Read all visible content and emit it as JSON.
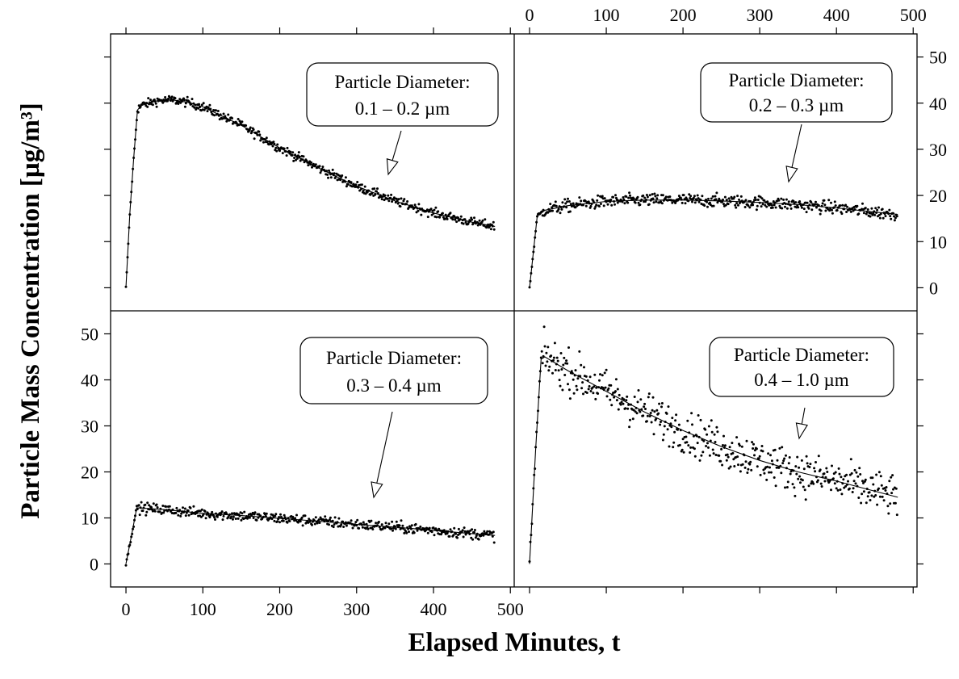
{
  "chart_data": {
    "type": "scatter",
    "xlabel": "Elapsed Minutes, t",
    "ylabel": "Particle Mass Concentration  [µg/m³]",
    "xlim": [
      -20,
      505
    ],
    "ylim": [
      -5,
      55
    ],
    "x_ticks": [
      0,
      100,
      200,
      300,
      400,
      500
    ],
    "y_ticks": [
      0,
      10,
      20,
      30,
      40,
      50
    ],
    "grid": false,
    "legend": "none",
    "panels": [
      {
        "annotation_line1": "Particle Diameter:",
        "annotation_line2": "0.1 – 0.2 µm",
        "fit": {
          "x": [
            0,
            5,
            10,
            15,
            20,
            40,
            60,
            80,
            100,
            150,
            200,
            250,
            300,
            350,
            400,
            450,
            480
          ],
          "y": [
            0,
            16,
            28,
            38.5,
            39.5,
            40.5,
            40.7,
            40.2,
            39.2,
            35.2,
            30.3,
            26,
            22,
            18.8,
            16.2,
            14.2,
            13.3
          ]
        },
        "points": {
          "start": 0,
          "count": 480,
          "noise": 0.5
        }
      },
      {
        "annotation_line1": "Particle Diameter:",
        "annotation_line2": "0.2 – 0.3 µm",
        "fit": {
          "x": [
            0,
            10,
            20,
            50,
            100,
            150,
            200,
            250,
            300,
            350,
            400,
            450,
            480
          ],
          "y": [
            0,
            15.5,
            16.8,
            17.8,
            18.7,
            19,
            19,
            18.8,
            18.5,
            18,
            17.3,
            16.4,
            15.9
          ]
        },
        "points": {
          "start": 0,
          "count": 480,
          "noise": 0.7
        }
      },
      {
        "annotation_line1": "Particle Diameter:",
        "annotation_line2": "0.3 – 0.4 µm",
        "fit": {
          "x": [
            0,
            7,
            14,
            50,
            100,
            150,
            200,
            250,
            300,
            350,
            400,
            450,
            480
          ],
          "y": [
            0,
            6,
            12.2,
            11.8,
            11,
            10.5,
            9.9,
            9.3,
            8.6,
            8,
            7.3,
            6.6,
            6.2
          ]
        },
        "points": {
          "start": 0,
          "count": 480,
          "noise": 0.6
        }
      },
      {
        "annotation_line1": "Particle Diameter:",
        "annotation_line2": "0.4 – 1.0 µm",
        "fit": {
          "x": [
            0,
            8,
            15,
            20,
            50,
            100,
            150,
            200,
            250,
            300,
            350,
            400,
            450,
            480
          ],
          "y": [
            0,
            25,
            44.5,
            45,
            42,
            37.5,
            33,
            29,
            25.5,
            22.5,
            20,
            18,
            15.8,
            14.5
          ]
        },
        "points": {
          "start": 0,
          "count": 480,
          "noise": 2.3
        }
      }
    ]
  }
}
